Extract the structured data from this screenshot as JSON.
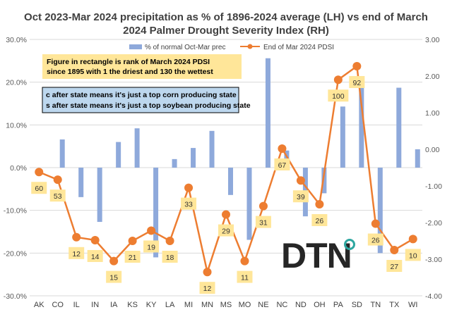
{
  "chart_data": {
    "type": "bar+line",
    "title_lines": [
      "Oct 2023-Mar 2024 precipitation as % of 1896-2024 average (LH) vs end of March",
      "2024 Palmer Drought Severity Index (RH)"
    ],
    "categories": [
      "AK",
      "CO",
      "IL",
      "IN",
      "IA",
      "KS",
      "KY",
      "LA",
      "MI",
      "MN",
      "MS",
      "MO",
      "NE",
      "NC",
      "ND",
      "OH",
      "PA",
      "SD",
      "TN",
      "TX",
      "WI"
    ],
    "left_axis": {
      "min": -30,
      "max": 30,
      "step": 10,
      "tick_labels": [
        "30.0%",
        "20.0%",
        "10.0%",
        "0.0%",
        "-10.0%",
        "-20.0%",
        "-30.0%"
      ]
    },
    "right_axis": {
      "min": -4,
      "max": 3,
      "step": 1,
      "tick_labels": [
        "3.00",
        "2.00",
        "1.00",
        "0.00",
        "-1.00",
        "-2.00",
        "-3.00",
        "-4.00"
      ]
    },
    "series": [
      {
        "name": "% of normal Oct-Mar prec",
        "type": "bar",
        "axis": "left",
        "color": "#8EA9DB",
        "values": [
          0,
          6.6,
          -6.9,
          -12.7,
          6.0,
          9.2,
          -21.0,
          2.0,
          4.6,
          8.6,
          -6.4,
          -16.9,
          25.6,
          4.0,
          -11.4,
          -6.0,
          14.3,
          20.1,
          -20.0,
          18.7,
          4.3
        ]
      },
      {
        "name": "End of Mar 2024 PDSI",
        "type": "line",
        "axis": "right",
        "color": "#ED7D31",
        "values": [
          -0.62,
          -0.83,
          -2.4,
          -2.48,
          -3.05,
          -2.5,
          -2.22,
          -2.5,
          -1.05,
          -3.35,
          -1.78,
          -3.05,
          -1.55,
          0.02,
          -0.85,
          -1.5,
          1.9,
          2.27,
          -2.03,
          -2.75,
          -2.45
        ],
        "rank_labels": [
          "60",
          "53",
          "12",
          "14",
          "15",
          "21",
          "19",
          "18",
          "33",
          "12",
          "29",
          "11",
          "31",
          "67",
          "39",
          "26",
          "100",
          "92",
          "26",
          "27",
          "10"
        ]
      }
    ],
    "annotations": {
      "pdsi_rank_note": [
        "Figure in rectangle is rank of March 2024 PDSI",
        "since 1895 with 1 the driest and 130 the wettest"
      ],
      "crop_note": [
        "c after state means it's just a top corn producing state",
        "s after state means it's just a top soybean producing state"
      ]
    },
    "brand": "DTN",
    "colors": {
      "title": "#404040",
      "note1_fill": "#FFE699",
      "note2_fill": "#BDD7EE",
      "rank_box_fill": "#FFE699",
      "grid": "#D9D9D9"
    }
  }
}
